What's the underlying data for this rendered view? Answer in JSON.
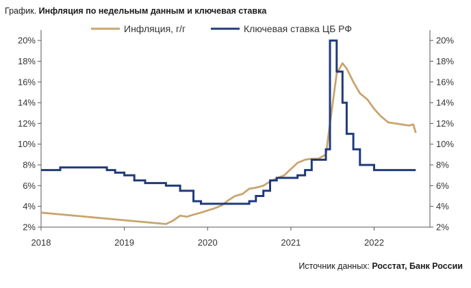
{
  "chart_data": {
    "type": "line",
    "title_prefix": "График.",
    "title": "Инфляция по недельным данным и ключевая ставка",
    "source_prefix": "Источник данных:",
    "source": "Росстат, Банк России",
    "x_ticks": [
      "2018",
      "2019",
      "2020",
      "2021",
      "2022"
    ],
    "xlim": [
      2018.0,
      2022.67
    ],
    "left_ticks": [
      "2%",
      "4%",
      "6%",
      "8%",
      "10%",
      "12%",
      "14%",
      "16%",
      "18%",
      "20%"
    ],
    "right_ticks": [
      "2%",
      "4%",
      "6%",
      "8%",
      "10%",
      "12%",
      "14%",
      "16%",
      "18%",
      "20%"
    ],
    "ylim": [
      2,
      21
    ],
    "legend_position": "top",
    "series": [
      {
        "name": "Инфляция, г/г",
        "color": "#c9a46e",
        "step": false,
        "x": [
          2018.0,
          2019.5,
          2019.58,
          2019.67,
          2019.75,
          2019.83,
          2019.92,
          2020.0,
          2020.08,
          2020.17,
          2020.25,
          2020.33,
          2020.42,
          2020.5,
          2020.58,
          2020.67,
          2020.75,
          2020.83,
          2020.92,
          2021.0,
          2021.08,
          2021.17,
          2021.25,
          2021.33,
          2021.42,
          2021.47,
          2021.55,
          2021.62,
          2021.67,
          2021.75,
          2021.83,
          2021.92,
          2022.0,
          2022.08,
          2022.17,
          2022.25,
          2022.33,
          2022.42,
          2022.47,
          2022.5
        ],
        "values": [
          3.4,
          2.3,
          2.6,
          3.1,
          3.0,
          3.2,
          3.4,
          3.6,
          3.8,
          4.1,
          4.6,
          5.0,
          5.2,
          5.7,
          5.8,
          6.0,
          6.4,
          6.7,
          7.0,
          7.6,
          8.2,
          8.5,
          8.6,
          8.6,
          9.0,
          12.0,
          16.8,
          17.8,
          17.3,
          16.0,
          14.9,
          14.3,
          13.4,
          12.7,
          12.1,
          12.0,
          11.9,
          11.8,
          11.9,
          11.1
        ]
      },
      {
        "name": "Ключевая ставка ЦБ РФ",
        "color": "#1f3a7a",
        "step": true,
        "x": [
          2018.0,
          2018.23,
          2018.79,
          2018.89,
          2019.0,
          2019.12,
          2019.25,
          2019.5,
          2019.67,
          2019.83,
          2019.92,
          2020.33,
          2020.5,
          2020.58,
          2020.67,
          2020.75,
          2020.83,
          2021.0,
          2021.08,
          2021.17,
          2021.25,
          2021.42,
          2021.47,
          2021.55,
          2021.62,
          2021.67,
          2021.75,
          2021.83,
          2021.92,
          2022.0,
          2022.08,
          2022.17,
          2022.25,
          2022.33,
          2022.42,
          2022.5
        ],
        "values": [
          7.5,
          7.75,
          7.5,
          7.25,
          7.0,
          6.5,
          6.25,
          6.0,
          5.5,
          4.5,
          4.25,
          4.25,
          4.5,
          5.0,
          5.5,
          6.5,
          6.75,
          6.75,
          7.0,
          7.5,
          8.5,
          9.5,
          20.0,
          17.0,
          14.0,
          11.0,
          9.5,
          8.0,
          8.0,
          7.5,
          7.5,
          7.5,
          7.5,
          7.5,
          7.5,
          7.5
        ]
      }
    ]
  }
}
